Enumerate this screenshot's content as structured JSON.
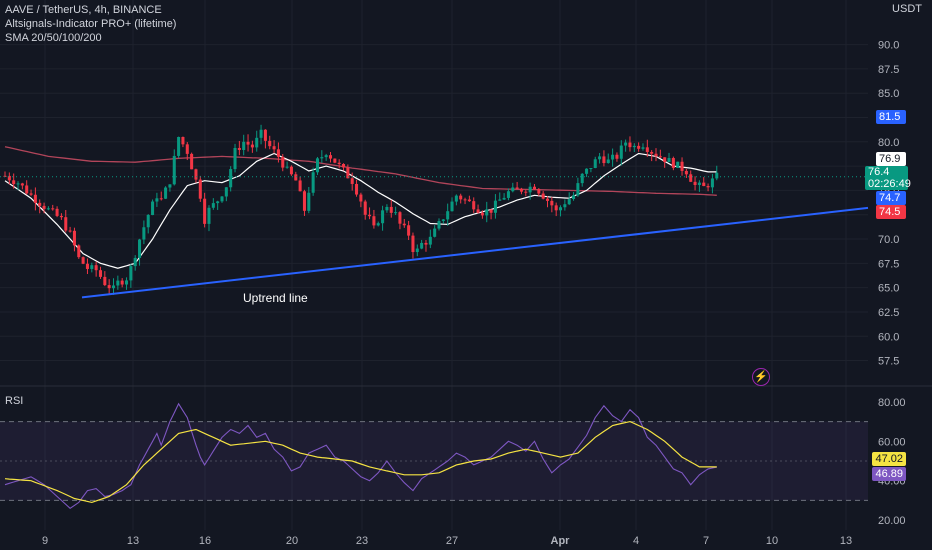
{
  "legend": {
    "symbol": "AAVE / TetherUS, 4h, BINANCE",
    "indicator1": "Altsignals-Indicator PRO+ (lifetime)",
    "indicator2": "SMA 20/50/100/200"
  },
  "rsi_label": "RSI",
  "currency": "USDT",
  "price_tags": {
    "white": "76.9",
    "current": "76.4",
    "countdown": "02:26:49",
    "blue_top": "81.5",
    "blue_mid": "74.7",
    "red": "74.5",
    "rsi_yellow": "47.02",
    "rsi_purple": "46.89"
  },
  "colors": {
    "background": "#131722",
    "up": "#089981",
    "down": "#f23645",
    "sma_white": "#ffffff",
    "sma_red": "#b2455a",
    "trendline": "#2962ff",
    "rsi_line": "#7e57c2",
    "rsi_ma": "#f5e343"
  },
  "chart_data": {
    "type": "candlestick",
    "price_axis": {
      "min": 55.5,
      "max": 91.5,
      "ticks": [
        90.0,
        87.5,
        85.0,
        82.5,
        80.0,
        77.5,
        75.0,
        72.5,
        70.0,
        67.5,
        65.0,
        62.5,
        60.0,
        57.5
      ]
    },
    "rsi_axis": {
      "min": 15,
      "max": 85,
      "ticks": [
        80.0,
        60.0,
        40.0,
        20.0
      ],
      "bands": [
        30,
        70
      ]
    },
    "x_labels": [
      "9",
      "13",
      "16",
      "20",
      "23",
      "27",
      "Apr",
      "4",
      "7",
      "10",
      "13"
    ],
    "annotation": "Uptrend line",
    "trendline": {
      "start_price": 64.0,
      "end_price": 73.2
    },
    "price_path": [
      [
        0,
        76.5
      ],
      [
        3,
        75.8
      ],
      [
        6,
        74.5
      ],
      [
        10,
        73.0
      ],
      [
        13,
        72.0
      ],
      [
        15,
        70.5
      ],
      [
        17,
        68.0
      ],
      [
        19,
        67.0
      ],
      [
        21,
        66.8
      ],
      [
        23,
        65.5
      ],
      [
        25,
        64.8
      ],
      [
        26,
        65.5
      ],
      [
        28,
        66.0
      ],
      [
        29,
        67.0
      ],
      [
        31,
        70.0
      ],
      [
        33,
        72.5
      ],
      [
        35,
        74.5
      ],
      [
        36,
        74.0
      ],
      [
        38,
        76.0
      ],
      [
        40,
        80.5
      ],
      [
        42,
        79.0
      ],
      [
        44,
        76.0
      ],
      [
        45,
        74.5
      ],
      [
        46,
        72.0
      ],
      [
        47,
        73.0
      ],
      [
        49,
        74.0
      ],
      [
        51,
        75.5
      ],
      [
        53,
        79.0
      ],
      [
        55,
        80.0
      ],
      [
        57,
        79.5
      ],
      [
        59,
        80.8
      ],
      [
        61,
        79.5
      ],
      [
        63,
        78.5
      ],
      [
        65,
        77.0
      ],
      [
        67,
        76.0
      ],
      [
        68,
        74.5
      ],
      [
        69,
        73.0
      ],
      [
        70,
        75.0
      ],
      [
        72,
        78.0
      ],
      [
        74,
        79.0
      ],
      [
        76,
        78.0
      ],
      [
        78,
        77.0
      ],
      [
        80,
        76.0
      ],
      [
        82,
        74.0
      ],
      [
        83,
        72.5
      ],
      [
        84,
        72.0
      ],
      [
        85,
        71.0
      ],
      [
        86,
        72.0
      ],
      [
        88,
        73.5
      ],
      [
        90,
        72.5
      ],
      [
        91,
        71.5
      ],
      [
        92,
        71.0
      ],
      [
        93,
        70.5
      ],
      [
        94,
        69.0
      ],
      [
        95,
        68.8
      ],
      [
        96,
        69.5
      ],
      [
        98,
        70.0
      ],
      [
        100,
        71.5
      ],
      [
        102,
        73.0
      ],
      [
        104,
        74.5
      ],
      [
        106,
        74.0
      ],
      [
        108,
        73.5
      ],
      [
        110,
        72.8
      ],
      [
        112,
        73.0
      ],
      [
        114,
        74.0
      ],
      [
        116,
        74.8
      ],
      [
        118,
        75.0
      ],
      [
        120,
        75.2
      ],
      [
        122,
        75.5
      ],
      [
        124,
        74.5
      ],
      [
        126,
        73.5
      ],
      [
        127,
        72.8
      ],
      [
        129,
        73.8
      ],
      [
        131,
        74.5
      ],
      [
        133,
        76.5
      ],
      [
        135,
        77.5
      ],
      [
        137,
        78.5
      ],
      [
        139,
        78.0
      ],
      [
        141,
        78.5
      ],
      [
        143,
        80.0
      ],
      [
        145,
        79.5
      ],
      [
        147,
        79.8
      ],
      [
        149,
        79.0
      ],
      [
        151,
        78.5
      ],
      [
        153,
        78.0
      ],
      [
        155,
        77.5
      ],
      [
        157,
        77.0
      ],
      [
        159,
        75.5
      ],
      [
        161,
        75.3
      ],
      [
        163,
        76.0
      ],
      [
        164,
        76.4
      ]
    ],
    "rsi_path": [
      [
        0,
        38
      ],
      [
        3,
        40
      ],
      [
        6,
        42
      ],
      [
        9,
        38
      ],
      [
        11,
        34
      ],
      [
        13,
        30
      ],
      [
        15,
        26
      ],
      [
        17,
        29
      ],
      [
        19,
        35
      ],
      [
        21,
        36
      ],
      [
        23,
        32
      ],
      [
        25,
        33
      ],
      [
        27,
        35
      ],
      [
        29,
        38
      ],
      [
        31,
        48
      ],
      [
        33,
        56
      ],
      [
        35,
        64
      ],
      [
        36,
        58
      ],
      [
        38,
        70
      ],
      [
        40,
        79
      ],
      [
        42,
        72
      ],
      [
        44,
        58
      ],
      [
        45,
        52
      ],
      [
        46,
        48
      ],
      [
        48,
        55
      ],
      [
        50,
        62
      ],
      [
        52,
        66
      ],
      [
        54,
        64
      ],
      [
        56,
        68
      ],
      [
        58,
        62
      ],
      [
        60,
        64
      ],
      [
        62,
        56
      ],
      [
        64,
        52
      ],
      [
        66,
        45
      ],
      [
        68,
        47
      ],
      [
        70,
        54
      ],
      [
        72,
        56
      ],
      [
        74,
        58
      ],
      [
        76,
        52
      ],
      [
        78,
        50
      ],
      [
        80,
        46
      ],
      [
        82,
        42
      ],
      [
        84,
        40
      ],
      [
        86,
        44
      ],
      [
        88,
        50
      ],
      [
        90,
        44
      ],
      [
        92,
        39
      ],
      [
        94,
        35
      ],
      [
        96,
        41
      ],
      [
        98,
        44
      ],
      [
        100,
        47
      ],
      [
        102,
        50
      ],
      [
        104,
        54
      ],
      [
        106,
        52
      ],
      [
        108,
        48
      ],
      [
        110,
        50
      ],
      [
        112,
        52
      ],
      [
        114,
        56
      ],
      [
        116,
        60
      ],
      [
        118,
        58
      ],
      [
        120,
        55
      ],
      [
        122,
        60
      ],
      [
        124,
        51
      ],
      [
        126,
        44
      ],
      [
        128,
        48
      ],
      [
        130,
        51
      ],
      [
        132,
        57
      ],
      [
        134,
        63
      ],
      [
        136,
        72
      ],
      [
        138,
        78
      ],
      [
        140,
        73
      ],
      [
        142,
        70
      ],
      [
        144,
        76
      ],
      [
        146,
        72
      ],
      [
        148,
        62
      ],
      [
        150,
        58
      ],
      [
        152,
        52
      ],
      [
        154,
        46
      ],
      [
        156,
        44
      ],
      [
        158,
        38
      ],
      [
        160,
        43
      ],
      [
        162,
        46
      ],
      [
        164,
        46.89
      ]
    ],
    "rsi_ma_path": [
      [
        0,
        41
      ],
      [
        6,
        40
      ],
      [
        12,
        35
      ],
      [
        16,
        31
      ],
      [
        20,
        29
      ],
      [
        24,
        32
      ],
      [
        28,
        38
      ],
      [
        32,
        48
      ],
      [
        36,
        56
      ],
      [
        40,
        64
      ],
      [
        44,
        66
      ],
      [
        48,
        62
      ],
      [
        52,
        58
      ],
      [
        56,
        59
      ],
      [
        60,
        60
      ],
      [
        64,
        58
      ],
      [
        68,
        54
      ],
      [
        72,
        52
      ],
      [
        76,
        51
      ],
      [
        80,
        50
      ],
      [
        84,
        47
      ],
      [
        88,
        45
      ],
      [
        92,
        43
      ],
      [
        96,
        43
      ],
      [
        100,
        44
      ],
      [
        104,
        48
      ],
      [
        108,
        50
      ],
      [
        112,
        51
      ],
      [
        116,
        54
      ],
      [
        120,
        56
      ],
      [
        124,
        54
      ],
      [
        128,
        52
      ],
      [
        132,
        54
      ],
      [
        136,
        62
      ],
      [
        140,
        68
      ],
      [
        144,
        70
      ],
      [
        148,
        66
      ],
      [
        152,
        60
      ],
      [
        156,
        52
      ],
      [
        160,
        47
      ],
      [
        164,
        47.02
      ]
    ],
    "sma_white_path": [
      [
        0,
        76.0
      ],
      [
        6,
        74.2
      ],
      [
        12,
        71.5
      ],
      [
        18,
        68.5
      ],
      [
        22,
        67.5
      ],
      [
        26,
        67.0
      ],
      [
        30,
        67.5
      ],
      [
        34,
        70.0
      ],
      [
        38,
        73.0
      ],
      [
        42,
        75.5
      ],
      [
        46,
        76.0
      ],
      [
        50,
        75.8
      ],
      [
        54,
        76.5
      ],
      [
        58,
        78.0
      ],
      [
        62,
        78.8
      ],
      [
        66,
        78.0
      ],
      [
        70,
        77.0
      ],
      [
        74,
        77.5
      ],
      [
        78,
        77.0
      ],
      [
        82,
        76.0
      ],
      [
        86,
        74.8
      ],
      [
        90,
        73.8
      ],
      [
        94,
        72.6
      ],
      [
        98,
        71.6
      ],
      [
        102,
        71.5
      ],
      [
        106,
        72.3
      ],
      [
        110,
        72.8
      ],
      [
        114,
        73.3
      ],
      [
        118,
        74.0
      ],
      [
        122,
        74.5
      ],
      [
        126,
        74.3
      ],
      [
        130,
        74.2
      ],
      [
        134,
        75.0
      ],
      [
        138,
        76.5
      ],
      [
        142,
        77.7
      ],
      [
        146,
        78.8
      ],
      [
        150,
        78.5
      ],
      [
        154,
        77.5
      ],
      [
        158,
        77.3
      ],
      [
        162,
        76.9
      ],
      [
        164,
        76.9
      ]
    ],
    "sma_red_path": [
      [
        0,
        79.5
      ],
      [
        10,
        78.5
      ],
      [
        20,
        78.0
      ],
      [
        30,
        77.9
      ],
      [
        40,
        78.3
      ],
      [
        50,
        78.5
      ],
      [
        60,
        78.3
      ],
      [
        70,
        78.0
      ],
      [
        80,
        77.3
      ],
      [
        90,
        76.7
      ],
      [
        100,
        75.8
      ],
      [
        110,
        75.2
      ],
      [
        120,
        75.1
      ],
      [
        130,
        75.0
      ],
      [
        140,
        74.9
      ],
      [
        150,
        74.7
      ],
      [
        160,
        74.6
      ],
      [
        164,
        74.5
      ]
    ]
  }
}
